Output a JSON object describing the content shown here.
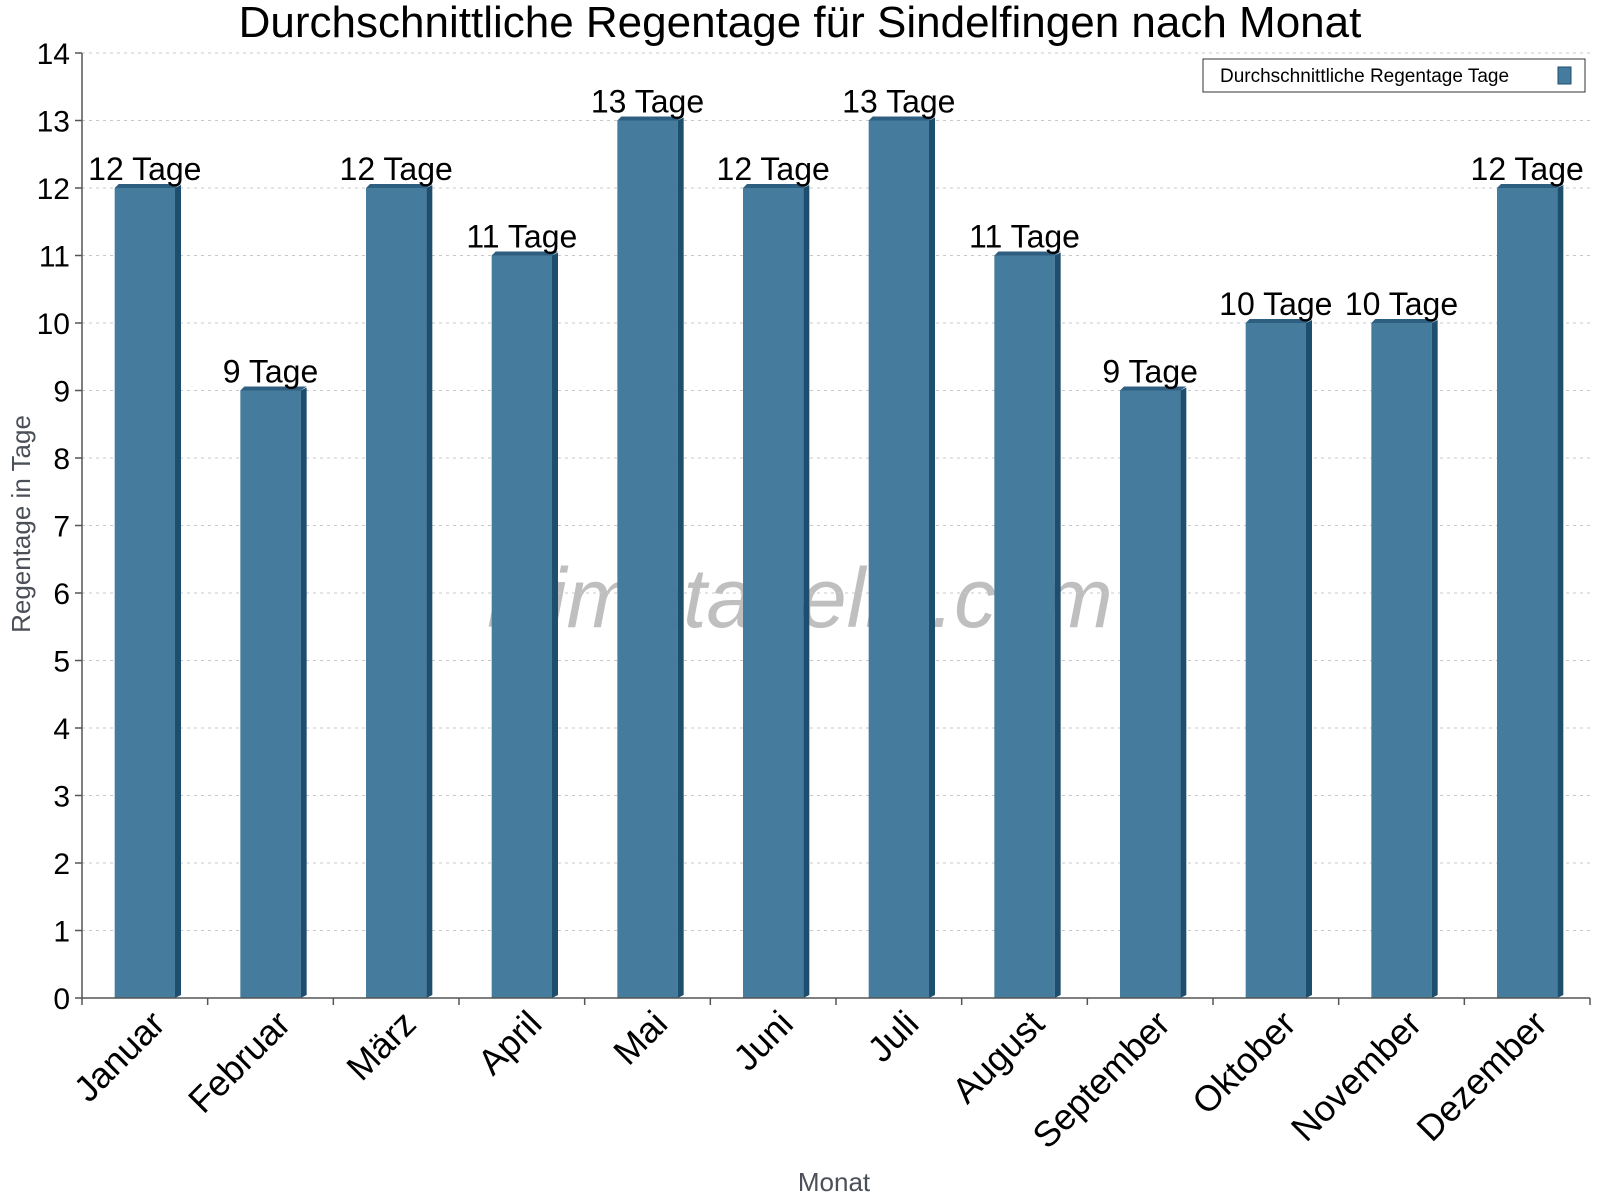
{
  "chart_data": {
    "type": "bar",
    "title": "Durchschnittliche Regentage für Sindelfingen nach Monat",
    "xlabel": "Monat",
    "ylabel": "Regentage in Tage",
    "categories": [
      "Januar",
      "Februar",
      "März",
      "April",
      "Mai",
      "Juni",
      "Juli",
      "August",
      "September",
      "Oktober",
      "November",
      "Dezember"
    ],
    "series": [
      {
        "name": "Durchschnittliche Regentage Tage",
        "values": [
          12,
          9,
          12,
          11,
          13,
          12,
          13,
          11,
          9,
          10,
          10,
          12
        ],
        "labels": [
          "12 Tage",
          "9 Tage",
          "12 Tage",
          "11 Tage",
          "13 Tage",
          "12 Tage",
          "13 Tage",
          "11 Tage",
          "9 Tage",
          "10 Tage",
          "10 Tage",
          "12 Tage"
        ]
      }
    ],
    "ylim": [
      0,
      14
    ],
    "yticks": [
      0,
      1,
      2,
      3,
      4,
      5,
      6,
      7,
      8,
      9,
      10,
      11,
      12,
      13,
      14
    ],
    "grid": true,
    "legend_position": "top-right",
    "watermark": "klimatabelle.com",
    "colors": {
      "bar": "#457b9d",
      "bar_side": "#1d4e6e",
      "bar_top": "#2f5f80"
    }
  }
}
